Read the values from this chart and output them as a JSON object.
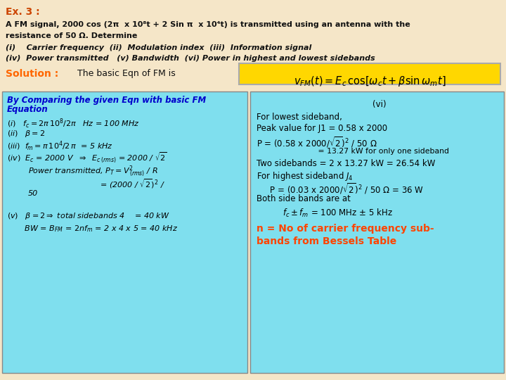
{
  "background_color": "#F5E6C8",
  "title": "Ex. 3 :",
  "title_color": "#CC4400",
  "problem_line1": "A FM signal, 2000 cos (2π  x 10⁸t + 2 Sin π  x 10⁴t) is transmitted using an antenna with the",
  "problem_line2": "resistance of 50 Ω. Determine",
  "items_line1": "(i)    Carrier frequency  (ii)  Modulation index  (iii)  Information signal",
  "items_line2": "(iv)  Power transmitted   (v) Bandwidth  (vi) Power in highest and lowest sidebands",
  "solution_label": "Solution :",
  "solution_label_color": "#FF6600",
  "solution_text": "The basic Eqn of FM is",
  "formula_box_color": "#FFD700",
  "box_color": "#7FDFEE",
  "box_border": "#888888",
  "left_title_color": "#0000CC",
  "bottom_right_color": "#FF4400",
  "text_color": "#111111",
  "italic_color": "#111111"
}
